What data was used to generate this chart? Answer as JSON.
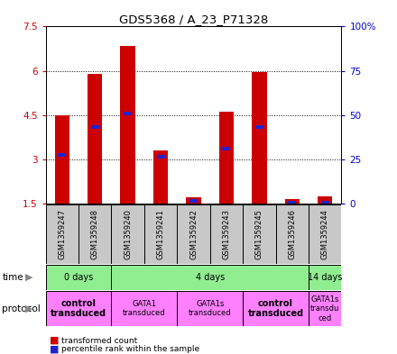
{
  "title": "GDS5368 / A_23_P71328",
  "samples": [
    "GSM1359247",
    "GSM1359248",
    "GSM1359240",
    "GSM1359241",
    "GSM1359242",
    "GSM1359243",
    "GSM1359245",
    "GSM1359246",
    "GSM1359244"
  ],
  "red_values": [
    4.5,
    5.9,
    6.85,
    3.3,
    1.7,
    4.6,
    5.95,
    1.65,
    1.75
  ],
  "blue_values": [
    3.15,
    4.1,
    4.55,
    3.1,
    1.6,
    3.35,
    4.1,
    1.52,
    1.52
  ],
  "ylim_left": [
    1.5,
    7.5
  ],
  "ylim_right": [
    0,
    100
  ],
  "yticks_left": [
    1.5,
    3.0,
    4.5,
    6.0,
    7.5
  ],
  "ytick_labels_left": [
    "1.5",
    "3",
    "4.5",
    "6",
    "7.5"
  ],
  "yticks_right": [
    0,
    25,
    50,
    75,
    100
  ],
  "ytick_labels_right": [
    "0",
    "25",
    "50",
    "75",
    "100%"
  ],
  "time_ranges": [
    {
      "label": "0 days",
      "start": 0,
      "end": 2,
      "color": "#90EE90"
    },
    {
      "label": "4 days",
      "start": 2,
      "end": 8,
      "color": "#90EE90"
    },
    {
      "label": "14 days",
      "start": 8,
      "end": 9,
      "color": "#90EE90"
    }
  ],
  "prot_ranges": [
    {
      "label": "control\ntransduced",
      "start": 0,
      "end": 2,
      "bold": true
    },
    {
      "label": "GATA1\ntransduced",
      "start": 2,
      "end": 4,
      "bold": false
    },
    {
      "label": "GATA1s\ntransduced",
      "start": 4,
      "end": 6,
      "bold": false
    },
    {
      "label": "control\ntransduced",
      "start": 6,
      "end": 8,
      "bold": true
    },
    {
      "label": "GATA1s\ntransdu\nced",
      "start": 8,
      "end": 9,
      "bold": false
    }
  ],
  "bar_color": "#CC0000",
  "blue_color": "#2222CC",
  "bar_width": 0.45,
  "blue_bar_width": 0.25,
  "base_value": 1.5,
  "gray_color": "#C8C8C8",
  "green_color": "#90EE90",
  "pink_color": "#FF80FF",
  "left_tick_color": "#CC0000",
  "right_tick_color": "#0000CC"
}
